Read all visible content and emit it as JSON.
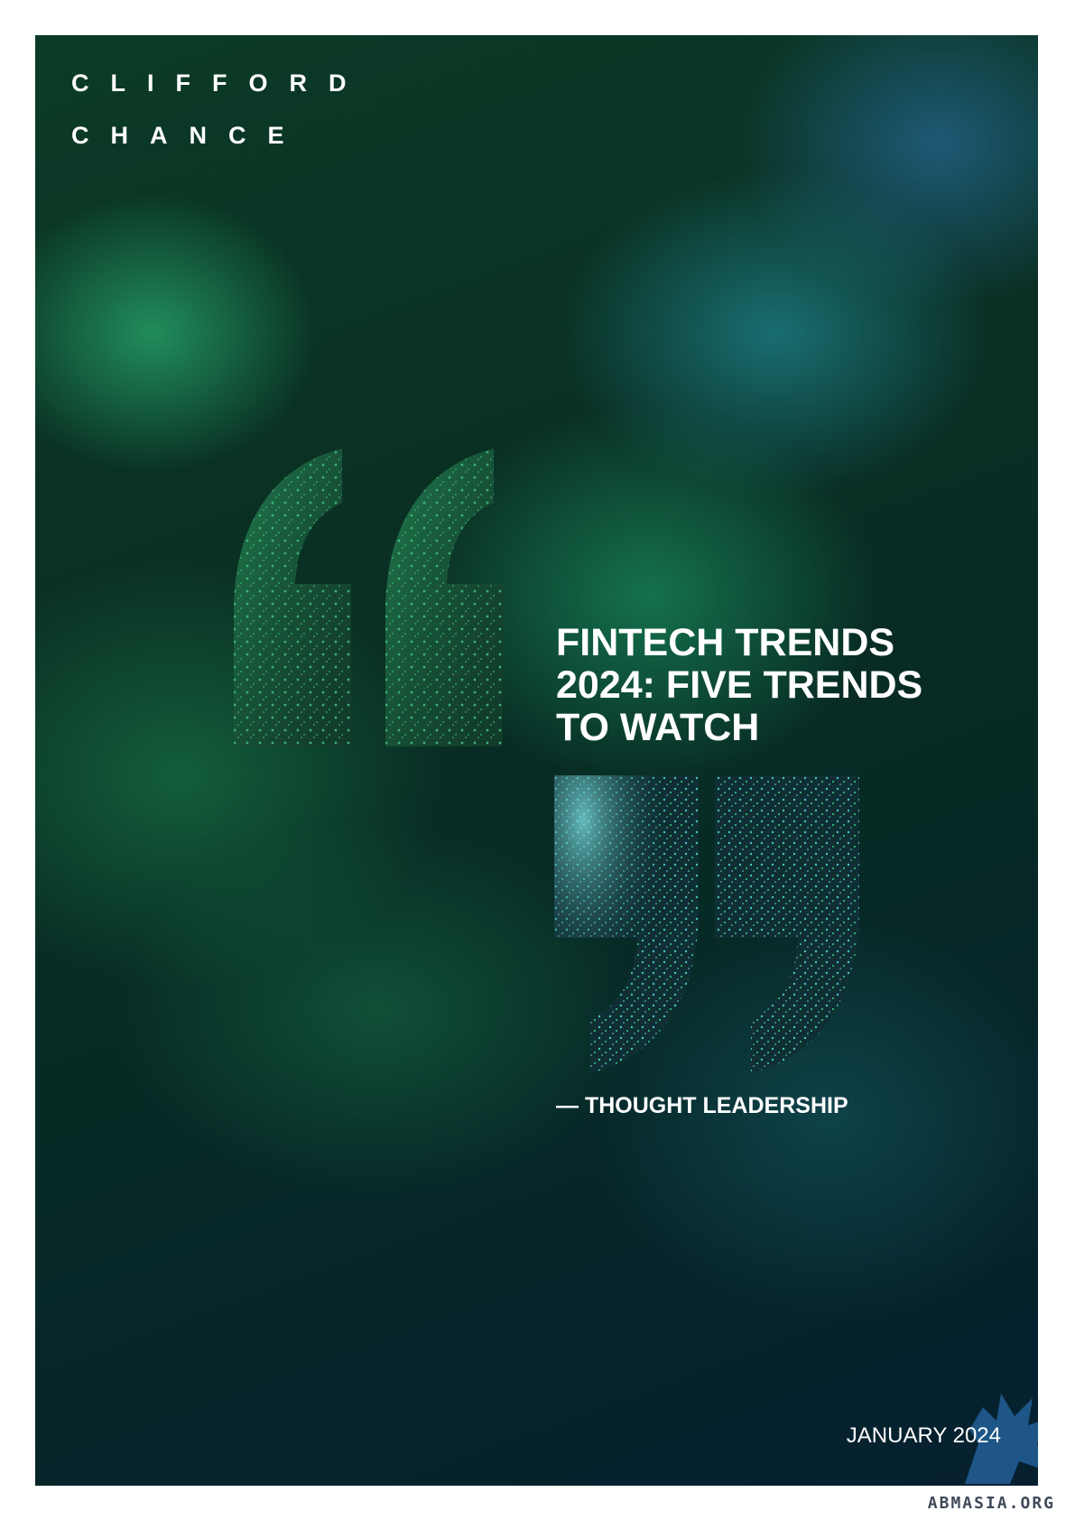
{
  "brand": {
    "line1": "CLIFFORD",
    "line2": "CHANCE"
  },
  "title": {
    "line1": "FINTECH TRENDS",
    "line2": "2024: FIVE TRENDS",
    "line3": "TO WATCH"
  },
  "subtitle": "— THOUGHT LEADERSHIP",
  "date": "JANUARY 2024",
  "watermark": "ABMASIA.ORG",
  "colors": {
    "primary_text": "#ffffff",
    "background_green": "#0b3b26",
    "background_teal": "#062030",
    "quote_green": "#2fb56e",
    "quote_teal": "#2aa7b0"
  },
  "icons": {
    "open_quote": "open-quote-icon",
    "close_quote": "close-quote-icon",
    "griffin": "griffin-logo"
  }
}
